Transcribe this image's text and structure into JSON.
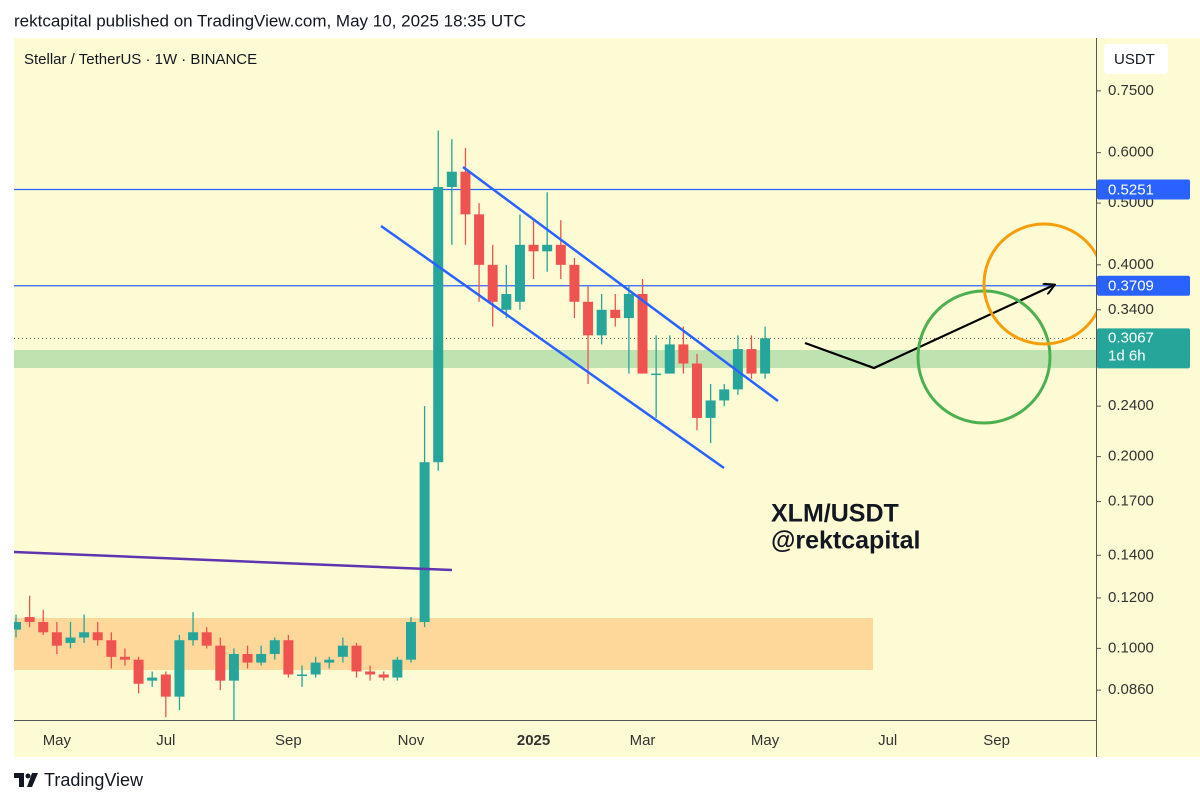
{
  "header": "rektcapital published on TradingView.com, May 10, 2025 18:35 UTC",
  "footer": "TradingView",
  "chart_data": {
    "type": "candlestick",
    "title": "Stellar / TetherUS · 1W · BINANCE",
    "currency": "USDT",
    "annotations": [
      "XLM/USDT",
      "@rektcapital"
    ],
    "countdown": "1d 6h",
    "log_scale": true,
    "grid": false,
    "up_color": "#26a69a",
    "down_color": "#ef5350",
    "categories": [
      null,
      null,
      null,
      "May",
      null,
      null,
      null,
      null,
      null,
      null,
      null,
      "Jul",
      null,
      null,
      null,
      null,
      null,
      null,
      null,
      null,
      "Sep",
      null,
      null,
      null,
      null,
      null,
      null,
      null,
      null,
      "Nov",
      null,
      null,
      null,
      null,
      null,
      null,
      null,
      null,
      "2025",
      null,
      null,
      null,
      null,
      null,
      null,
      null,
      "Mar",
      null,
      null,
      null,
      null,
      null,
      null,
      null,
      null,
      "May",
      null,
      null,
      null,
      null,
      null,
      null,
      null,
      null,
      "Jul",
      null,
      null,
      null,
      null,
      null,
      null,
      null,
      "Sep",
      null,
      null,
      null,
      null,
      null,
      null,
      null
    ],
    "open": [
      0.107,
      0.112,
      0.11,
      0.106,
      0.102,
      0.104,
      0.106,
      0.103,
      0.097,
      0.096,
      0.089,
      0.091,
      0.084,
      0.103,
      0.106,
      0.101,
      0.089,
      0.098,
      0.095,
      0.098,
      0.103,
      0.091,
      0.091,
      0.095,
      0.097,
      0.101,
      0.092,
      0.091,
      0.09,
      0.096,
      0.11,
      0.196,
      0.53,
      0.56,
      0.48,
      0.4,
      0.34,
      0.35,
      0.43,
      0.42,
      0.43,
      0.4,
      0.35,
      0.31,
      0.34,
      0.33,
      0.36,
      0.27,
      0.27,
      0.3,
      0.28,
      0.23,
      0.245,
      0.255,
      0.295,
      0.27,
      null,
      null,
      null,
      null,
      null,
      null,
      null,
      null,
      null,
      null,
      null,
      null,
      null,
      null,
      null,
      null,
      null,
      null,
      null,
      null,
      null,
      null,
      null,
      null
    ],
    "high": [
      0.113,
      0.121,
      0.115,
      0.11,
      0.11,
      0.113,
      0.11,
      0.106,
      0.1,
      0.097,
      0.092,
      0.092,
      0.105,
      0.114,
      0.108,
      0.104,
      0.1,
      0.101,
      0.101,
      0.104,
      0.105,
      0.094,
      0.097,
      0.097,
      0.104,
      0.102,
      0.094,
      0.092,
      0.097,
      0.112,
      0.24,
      0.65,
      0.63,
      0.61,
      0.5,
      0.43,
      0.4,
      0.48,
      0.47,
      0.52,
      0.47,
      0.41,
      0.37,
      0.36,
      0.36,
      0.37,
      0.38,
      0.31,
      0.31,
      0.32,
      0.29,
      0.26,
      0.26,
      0.31,
      0.31,
      0.32,
      null,
      null,
      null,
      null,
      null,
      null,
      null,
      null,
      null,
      null,
      null,
      null,
      null,
      null,
      null,
      null,
      null,
      null,
      null,
      null,
      null,
      null,
      null,
      null
    ],
    "low": [
      0.104,
      0.108,
      0.105,
      0.098,
      0.1,
      0.102,
      0.101,
      0.093,
      0.094,
      0.085,
      0.087,
      0.078,
      0.08,
      0.101,
      0.1,
      0.086,
      0.077,
      0.093,
      0.094,
      0.096,
      0.09,
      0.087,
      0.09,
      0.093,
      0.095,
      0.09,
      0.089,
      0.089,
      0.089,
      0.095,
      0.108,
      0.19,
      0.43,
      0.43,
      0.35,
      0.32,
      0.33,
      0.34,
      0.38,
      0.39,
      0.38,
      0.33,
      0.26,
      0.3,
      0.32,
      0.27,
      0.27,
      0.23,
      0.27,
      0.27,
      0.22,
      0.21,
      0.24,
      0.25,
      0.265,
      0.265,
      null,
      null,
      null,
      null,
      null,
      null,
      null,
      null,
      null,
      null,
      null,
      null,
      null,
      null,
      null,
      null,
      null,
      null,
      null,
      null,
      null,
      null,
      null,
      null
    ],
    "close": [
      0.11,
      0.11,
      0.106,
      0.101,
      0.104,
      0.106,
      0.103,
      0.097,
      0.096,
      0.088,
      0.09,
      0.084,
      0.103,
      0.106,
      0.101,
      0.089,
      0.098,
      0.095,
      0.098,
      0.103,
      0.091,
      0.091,
      0.095,
      0.096,
      0.101,
      0.092,
      0.091,
      0.09,
      0.096,
      0.11,
      0.196,
      0.53,
      0.56,
      0.48,
      0.4,
      0.35,
      0.36,
      0.43,
      0.42,
      0.43,
      0.4,
      0.35,
      0.31,
      0.34,
      0.33,
      0.36,
      0.27,
      0.27,
      0.3,
      0.28,
      0.23,
      0.245,
      0.255,
      0.295,
      0.27,
      0.3067,
      null,
      null,
      null,
      null,
      null,
      null,
      null,
      null,
      null,
      null,
      null,
      null,
      null,
      null,
      null,
      null,
      null,
      null,
      null,
      null,
      null,
      null,
      null,
      null
    ],
    "levels": [
      {
        "value": 0.5251,
        "color": "#2962ff"
      },
      {
        "value": 0.3709,
        "color": "#2962ff"
      }
    ],
    "ylim": [
      0.0772,
      0.908
    ],
    "yticks": [
      {
        "value": 0.75,
        "label": "0.7500"
      },
      {
        "value": 0.6,
        "label": "0.6000"
      },
      {
        "value": 0.5,
        "label": "0.5000"
      },
      {
        "value": 0.4,
        "label": "0.4000"
      },
      {
        "value": 0.34,
        "label": "0.3400"
      },
      {
        "value": 0.24,
        "label": "0.2400"
      },
      {
        "value": 0.2,
        "label": "0.2000"
      },
      {
        "value": 0.17,
        "label": "0.1700"
      },
      {
        "value": 0.14,
        "label": "0.1400"
      },
      {
        "value": 0.12,
        "label": "0.1200"
      },
      {
        "value": 0.1,
        "label": "0.1000"
      },
      {
        "value": 0.086,
        "label": "0.0860"
      }
    ]
  }
}
